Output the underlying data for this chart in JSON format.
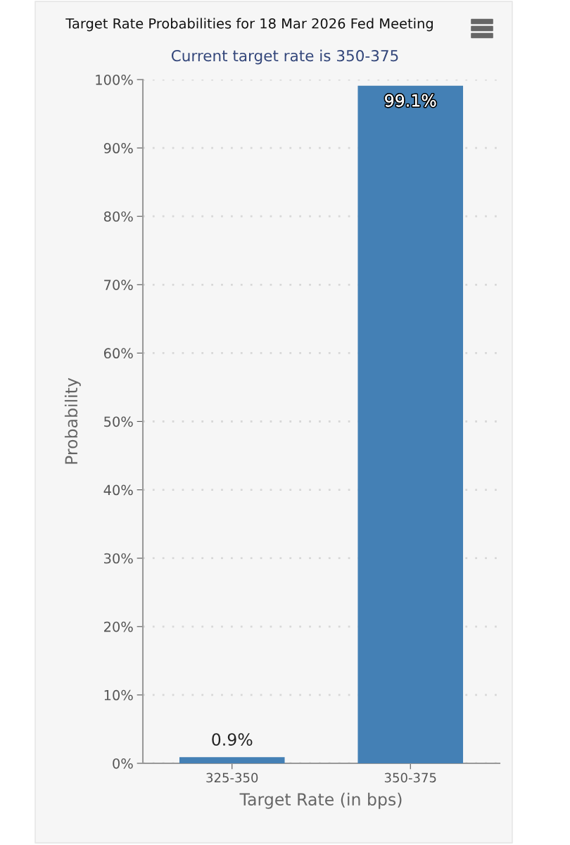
{
  "chart_data": {
    "type": "bar",
    "title": "Target Rate Probabilities for 18 Mar 2026 Fed Meeting",
    "subtitle": "Current target rate is 350-375",
    "xlabel": "Target Rate (in bps)",
    "ylabel": "Probability",
    "categories": [
      "325-350",
      "350-375"
    ],
    "values": [
      0.9,
      99.1
    ],
    "color": "#4480b5",
    "value_labels": [
      "0.9%",
      "99.1%"
    ],
    "ylim": [
      0,
      100
    ],
    "yticks": [
      {
        "value": 0,
        "label": "0%"
      },
      {
        "value": 10,
        "label": "10%"
      },
      {
        "value": 20,
        "label": "20%"
      },
      {
        "value": 30,
        "label": "30%"
      },
      {
        "value": 40,
        "label": "40%"
      },
      {
        "value": 50,
        "label": "50%"
      },
      {
        "value": 60,
        "label": "60%"
      },
      {
        "value": 70,
        "label": "70%"
      },
      {
        "value": 80,
        "label": "80%"
      },
      {
        "value": 90,
        "label": "90%"
      },
      {
        "value": 100,
        "label": "100%"
      }
    ],
    "grid": "y",
    "legend": false
  }
}
